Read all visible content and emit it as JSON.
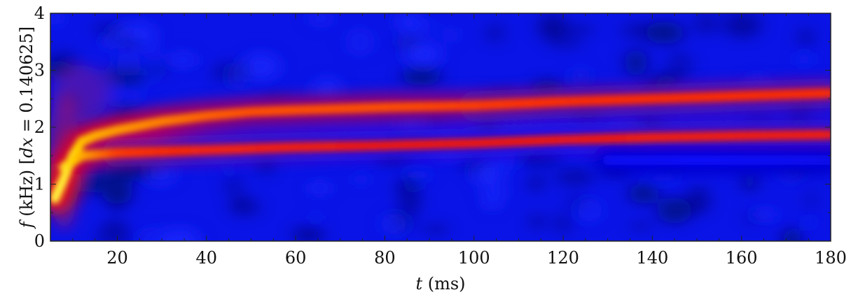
{
  "chart_data": {
    "type": "heatmap",
    "xlabel_var": "t",
    "xlabel_unit": " (ms)",
    "ylabel_var": "f",
    "ylabel_unit": " (kHz)",
    "ylabel_bracket_open": "[",
    "ylabel_param_var": "dx",
    "ylabel_param_rest": " = 0.140625",
    "ylabel_bracket_close": "]",
    "xlim": [
      5,
      180
    ],
    "ylim": [
      0,
      4
    ],
    "xticks": [
      20,
      40,
      60,
      80,
      100,
      120,
      140,
      160,
      180
    ],
    "yticks": [
      0,
      1,
      2,
      3,
      4
    ],
    "xminor_step": 5,
    "yminor_step": 0.5,
    "colormap": [
      "#000040",
      "#0000c8",
      "#1010ff",
      "#dd0020",
      "#ff3000",
      "#ffd000",
      "#ffff60"
    ],
    "background_color": "#0a14e6",
    "ridges": [
      {
        "points": [
          [
            6,
            0.75
          ],
          [
            8,
            1.1
          ],
          [
            10,
            1.5
          ],
          [
            12,
            1.75
          ],
          [
            15,
            1.85
          ],
          [
            20,
            1.95
          ],
          [
            30,
            2.1
          ],
          [
            40,
            2.2
          ],
          [
            50,
            2.27
          ],
          [
            60,
            2.3
          ],
          [
            80,
            2.35
          ],
          [
            100,
            2.38
          ],
          [
            120,
            2.45
          ],
          [
            140,
            2.5
          ],
          [
            160,
            2.55
          ],
          [
            180,
            2.6
          ]
        ],
        "intensity": [
          0.95,
          0.92,
          0.88,
          0.82,
          0.8,
          0.78,
          0.75,
          0.72,
          0.7,
          0.7,
          0.7,
          0.68,
          0.66,
          0.65,
          0.65,
          0.65
        ]
      },
      {
        "points": [
          [
            8,
            1.3
          ],
          [
            12,
            1.5
          ],
          [
            20,
            1.55
          ],
          [
            40,
            1.6
          ],
          [
            60,
            1.65
          ],
          [
            80,
            1.68
          ],
          [
            100,
            1.72
          ],
          [
            120,
            1.78
          ],
          [
            140,
            1.82
          ],
          [
            160,
            1.85
          ],
          [
            180,
            1.87
          ]
        ],
        "intensity": [
          0.9,
          0.8,
          0.68,
          0.62,
          0.6,
          0.58,
          0.58,
          0.57,
          0.6,
          0.6,
          0.6
        ]
      },
      {
        "points": [
          [
            130,
            1.42
          ],
          [
            150,
            1.42
          ],
          [
            170,
            1.42
          ],
          [
            180,
            1.42
          ]
        ],
        "intensity": [
          0.3,
          0.32,
          0.3,
          0.28
        ]
      }
    ]
  }
}
